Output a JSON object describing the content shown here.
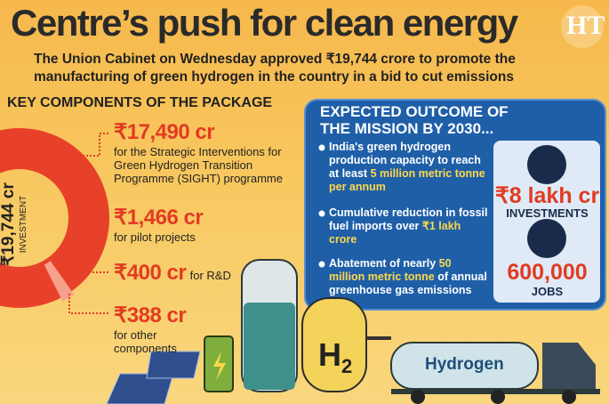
{
  "header": {
    "title": "Centre’s push for clean energy",
    "subtitle": "The Union Cabinet on Wednesday approved ₹19,744 crore to promote the manufacturing of green hydrogen in the country in a bid to cut emissions",
    "logo": "HT"
  },
  "package": {
    "heading": "KEY COMPONENTS OF THE PACKAGE",
    "total": {
      "amount": "₹19,744 cr",
      "label": "INVESTMENT"
    },
    "components": [
      {
        "amount": "₹17,490 cr",
        "description": "for the Strategic Interventions for Green Hydrogen Transition Programme (SIGHT) programme"
      },
      {
        "amount": "₹1,466 cr",
        "description": "for pilot projects"
      },
      {
        "amount": "₹400 cr",
        "description": "for R&D"
      },
      {
        "amount": "₹388 cr",
        "description": "for other components"
      }
    ]
  },
  "outcome": {
    "heading": "EXPECTED OUTCOME OF THE MISSION BY 2030...",
    "bullets": [
      {
        "parts": [
          {
            "text": "India's green hydrogen production capacity to reach at least "
          },
          {
            "text": "5 million metric tonne per annum",
            "emphasis": true
          }
        ]
      },
      {
        "parts": [
          {
            "text": "Cumulative reduction in fossil fuel imports over "
          },
          {
            "text": "₹1 lakh crore",
            "emphasis": true
          }
        ]
      },
      {
        "parts": [
          {
            "text": "Abatement of nearly "
          },
          {
            "text": "50 million metric tonne",
            "emphasis": true
          },
          {
            "text": " of annual greenhouse gas emissions"
          }
        ]
      }
    ],
    "stats": [
      {
        "value": "₹8 lakh cr",
        "label": "INVESTMENTS"
      },
      {
        "value": "600,000",
        "label": "JOBS"
      }
    ]
  },
  "illustration": {
    "symbol": "H",
    "subscript": "2",
    "truck_label": "Hydrogen"
  }
}
